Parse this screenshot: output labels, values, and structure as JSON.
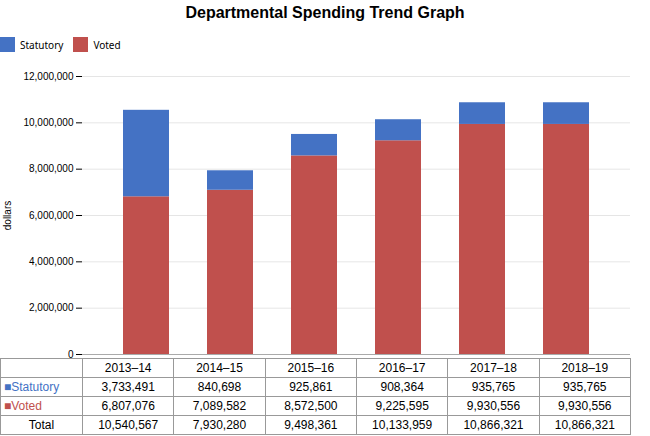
{
  "chart_data": {
    "type": "bar",
    "title": "Departmental Spending Trend Graph",
    "categories": [
      "2013–14",
      "2014–15",
      "2015–16",
      "2016–17",
      "2017–18",
      "2018–19"
    ],
    "series": [
      {
        "name": "Statutory",
        "color": "#4472C4",
        "values": [
          3733491,
          840698,
          925861,
          908364,
          935765,
          935765
        ]
      },
      {
        "name": "Voted",
        "color": "#C0504D",
        "values": [
          6807076,
          7089582,
          8572500,
          9225595,
          9930556,
          9930556
        ]
      }
    ],
    "stacked": true,
    "ylabel": "dollars",
    "ylim": [
      0,
      12000000
    ],
    "yticks": [
      0,
      {
        "value": 2000000,
        "label": "2,000,000"
      },
      {
        "value": 4000000,
        "label": "4,000,000"
      },
      {
        "value": 6000000,
        "label": "6,000,000"
      },
      {
        "value": 8000000,
        "label": "8,000,000"
      },
      {
        "value": 10000000,
        "label": "10,000,000"
      },
      {
        "value": 12000000,
        "label": "12,000,000"
      }
    ],
    "grid": true,
    "tick_labels": "y",
    "table": {
      "rows": [
        {
          "label": "■Statutory",
          "color": "#4472C4",
          "values": [
            3733491,
            840698,
            925861,
            908364,
            935765,
            935765
          ],
          "value_labels": [
            "3,733,491",
            "840,698",
            "925,861",
            "908,364",
            "935,765",
            "935,765"
          ]
        },
        {
          "label": "■Voted",
          "color": "#C0504D",
          "values": [
            6807076,
            7089582,
            8572500,
            9225595,
            9930556,
            9930556
          ],
          "value_labels": [
            "6,807,076",
            "7,089,582",
            "8,572,500",
            "9,225,595",
            "9,930,556",
            "9,930,556"
          ]
        },
        {
          "label": "Total",
          "values": [
            10540567,
            7930280,
            9498361,
            10133959,
            10866321,
            10866321
          ],
          "value_labels": [
            "10,540,567",
            "7,930,280",
            "9,498,361",
            "10,133,959",
            "10,866,321",
            "10,866,321"
          ]
        }
      ]
    }
  }
}
